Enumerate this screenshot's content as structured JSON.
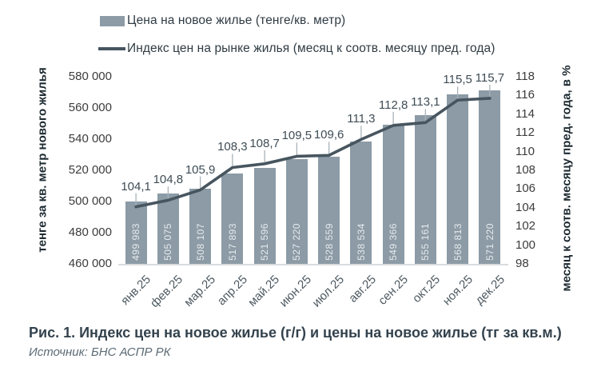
{
  "legend": {
    "bar_label": "Цена на новое жилье (тенге/кв. метр)",
    "line_label": "Индекс цен на рынке жилья (месяц к соотв. месяцу пред. года)"
  },
  "caption": "Рис. 1. Индекс цен на новое жилье (г/г) и цены на новое жилье (тг за кв.м.)",
  "source": "Источник: БНС АСПР РК",
  "chart_data": {
    "type": "bar",
    "combo": "bar+line",
    "grid": false,
    "legend_position": "top-left",
    "categories": [
      "янв.25",
      "фев.25",
      "мар.25",
      "апр.25",
      "май.25",
      "июн.25",
      "июл.25",
      "авг.25",
      "сен.25",
      "окт.25",
      "ноя.25",
      "дек.25"
    ],
    "series": [
      {
        "name": "Цена на новое жилье (тенге/кв. метр)",
        "type": "bar",
        "axis": "left",
        "color": "#8c9ba6",
        "values": [
          499983,
          505075,
          508107,
          517893,
          521596,
          527220,
          528559,
          538534,
          549366,
          555161,
          568813,
          571220
        ],
        "labels": [
          "499 983",
          "505 075",
          "508 107",
          "517 893",
          "521 596",
          "527 220",
          "528 559",
          "538 534",
          "549 366",
          "555 161",
          "568 813",
          "571 220"
        ]
      },
      {
        "name": "Индекс цен на рынке жилья (месяц к соотв. месяцу пред. года)",
        "type": "line",
        "axis": "right",
        "color": "#47555f",
        "values": [
          104.1,
          104.8,
          105.9,
          108.3,
          108.7,
          109.5,
          109.6,
          111.3,
          112.8,
          113.1,
          115.5,
          115.7
        ],
        "labels": [
          "104,1",
          "104,8",
          "105,9",
          "108,3",
          "108,7",
          "109,5",
          "109,6",
          "111,3",
          "112,8",
          "113,1",
          "115,5",
          "115,7"
        ]
      }
    ],
    "left_axis": {
      "title": "тенге за кв. метр нового жилья",
      "min": 460000,
      "max": 580000,
      "step": 20000,
      "tick_labels": [
        "580 000",
        "560 000",
        "540 000",
        "520 000",
        "500 000",
        "480 000",
        "460 000"
      ]
    },
    "right_axis": {
      "title": "месяц к соотв. месяцу пред. года, в %",
      "min": 98,
      "max": 118,
      "step": 2,
      "tick_labels": [
        "118",
        "116",
        "114",
        "112",
        "110",
        "108",
        "106",
        "104",
        "102",
        "100",
        "98"
      ]
    }
  }
}
